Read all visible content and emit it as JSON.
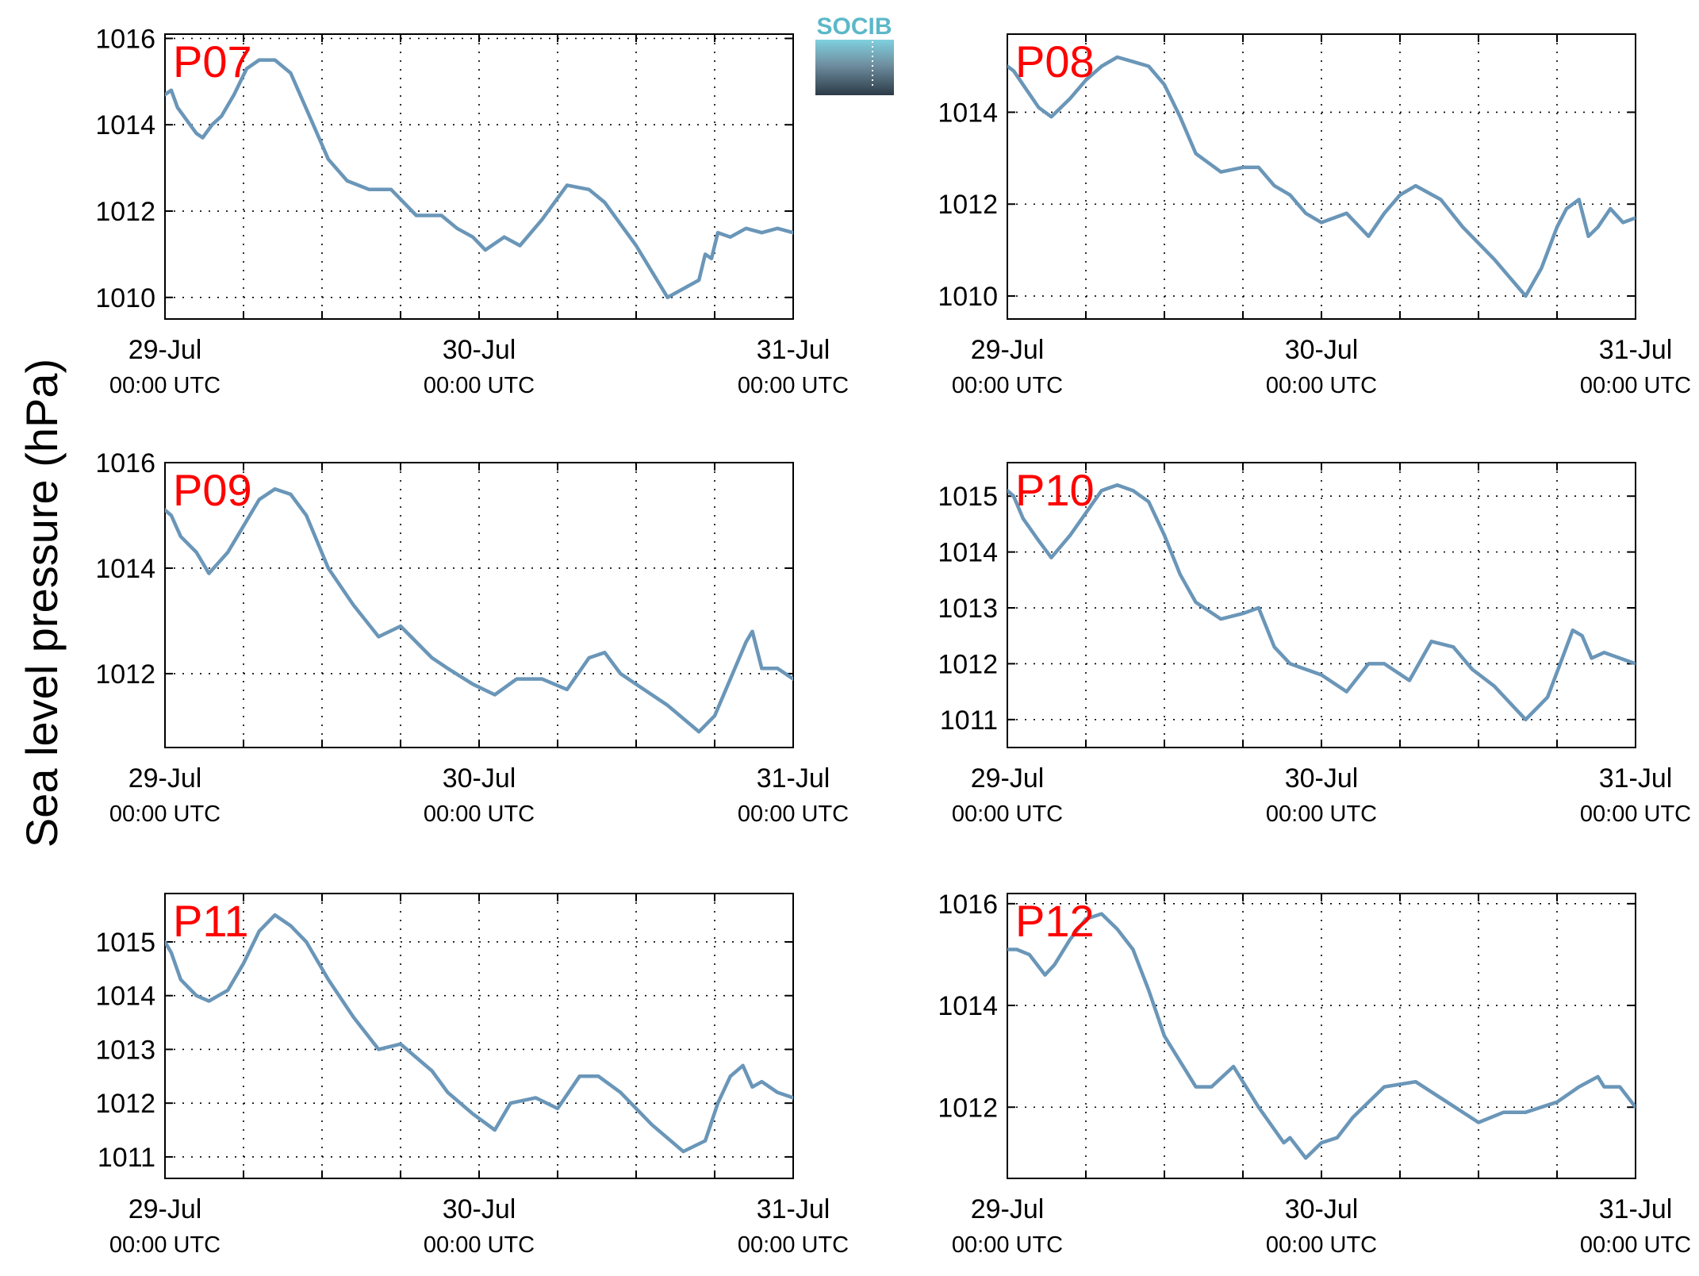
{
  "chart_data": {
    "type": "line",
    "ylabel": "Sea level pressure (hPa)",
    "logo": {
      "text": "SOCIB",
      "name": "socib-logo",
      "color": "#5bb8c8"
    },
    "colors": {
      "line": "#6a96b8",
      "label": "#ff0000",
      "grid": "#000000"
    },
    "grid": true,
    "x_ticks_days": [
      0,
      1,
      2
    ],
    "x_tick_labels": [
      {
        "date": "29-Jul",
        "time": "00:00 UTC"
      },
      {
        "date": "30-Jul",
        "time": "00:00 UTC"
      },
      {
        "date": "31-Jul",
        "time": "00:00 UTC"
      }
    ],
    "xlim_days": [
      0,
      2
    ],
    "panels": [
      {
        "label": "P07",
        "ylim": [
          1009.5,
          1016.1
        ],
        "yticks": [
          1010,
          1012,
          1014,
          1016
        ],
        "x": [
          0,
          0.02,
          0.04,
          0.07,
          0.1,
          0.12,
          0.15,
          0.18,
          0.22,
          0.26,
          0.3,
          0.35,
          0.4,
          0.46,
          0.52,
          0.58,
          0.65,
          0.72,
          0.8,
          0.88,
          0.93,
          0.98,
          1.02,
          1.08,
          1.13,
          1.2,
          1.28,
          1.35,
          1.4,
          1.45,
          1.5,
          1.6,
          1.7,
          1.72,
          1.74,
          1.76,
          1.8,
          1.85,
          1.9,
          1.95,
          2.0
        ],
        "y": [
          1014.7,
          1014.8,
          1014.4,
          1014.1,
          1013.8,
          1013.7,
          1014.0,
          1014.2,
          1014.7,
          1015.3,
          1015.5,
          1015.5,
          1015.2,
          1014.2,
          1013.2,
          1012.7,
          1012.5,
          1012.5,
          1011.9,
          1011.9,
          1011.6,
          1011.4,
          1011.1,
          1011.4,
          1011.2,
          1011.8,
          1012.6,
          1012.5,
          1012.2,
          1011.7,
          1011.2,
          1010.0,
          1010.4,
          1011.0,
          1010.9,
          1011.5,
          1011.4,
          1011.6,
          1011.5,
          1011.6,
          1011.5
        ]
      },
      {
        "label": "P08",
        "ylim": [
          1009.5,
          1015.7
        ],
        "yticks": [
          1010,
          1012,
          1014
        ],
        "x": [
          0,
          0.02,
          0.05,
          0.1,
          0.14,
          0.2,
          0.25,
          0.3,
          0.35,
          0.4,
          0.45,
          0.5,
          0.55,
          0.6,
          0.68,
          0.75,
          0.8,
          0.85,
          0.9,
          0.95,
          1.0,
          1.08,
          1.15,
          1.2,
          1.25,
          1.3,
          1.38,
          1.45,
          1.55,
          1.65,
          1.7,
          1.75,
          1.78,
          1.82,
          1.85,
          1.88,
          1.92,
          1.96,
          2.0
        ],
        "y": [
          1015.0,
          1014.9,
          1014.6,
          1014.1,
          1013.9,
          1014.3,
          1014.7,
          1015.0,
          1015.2,
          1015.1,
          1015.0,
          1014.6,
          1013.9,
          1013.1,
          1012.7,
          1012.8,
          1012.8,
          1012.4,
          1012.2,
          1011.8,
          1011.6,
          1011.8,
          1011.3,
          1011.8,
          1012.2,
          1012.4,
          1012.1,
          1011.5,
          1010.8,
          1010.0,
          1010.6,
          1011.5,
          1011.9,
          1012.1,
          1011.3,
          1011.5,
          1011.9,
          1011.6,
          1011.7
        ]
      },
      {
        "label": "P09",
        "ylim": [
          1010.6,
          1016.0
        ],
        "yticks": [
          1012,
          1014,
          1016
        ],
        "x": [
          0,
          0.02,
          0.05,
          0.1,
          0.14,
          0.2,
          0.25,
          0.3,
          0.35,
          0.4,
          0.45,
          0.52,
          0.6,
          0.68,
          0.75,
          0.85,
          0.9,
          0.98,
          1.05,
          1.12,
          1.2,
          1.28,
          1.35,
          1.4,
          1.45,
          1.5,
          1.6,
          1.7,
          1.75,
          1.8,
          1.85,
          1.87,
          1.9,
          1.95,
          2.0
        ],
        "y": [
          1015.1,
          1015.0,
          1014.6,
          1014.3,
          1013.9,
          1014.3,
          1014.8,
          1015.3,
          1015.5,
          1015.4,
          1015.0,
          1014.0,
          1013.3,
          1012.7,
          1012.9,
          1012.3,
          1012.1,
          1011.8,
          1011.6,
          1011.9,
          1011.9,
          1011.7,
          1012.3,
          1012.4,
          1012.0,
          1011.8,
          1011.4,
          1010.9,
          1011.2,
          1011.9,
          1012.6,
          1012.8,
          1012.1,
          1012.1,
          1011.9
        ]
      },
      {
        "label": "P10",
        "ylim": [
          1010.5,
          1015.6
        ],
        "yticks": [
          1011,
          1012,
          1013,
          1014,
          1015
        ],
        "x": [
          0,
          0.02,
          0.05,
          0.1,
          0.14,
          0.2,
          0.25,
          0.3,
          0.35,
          0.4,
          0.45,
          0.5,
          0.55,
          0.6,
          0.68,
          0.75,
          0.8,
          0.85,
          0.9,
          0.95,
          1.0,
          1.08,
          1.15,
          1.2,
          1.28,
          1.35,
          1.42,
          1.48,
          1.55,
          1.65,
          1.72,
          1.76,
          1.8,
          1.83,
          1.86,
          1.9,
          1.95,
          2.0
        ],
        "y": [
          1015.1,
          1015.0,
          1014.6,
          1014.2,
          1013.9,
          1014.3,
          1014.7,
          1015.1,
          1015.2,
          1015.1,
          1014.9,
          1014.3,
          1013.6,
          1013.1,
          1012.8,
          1012.9,
          1013.0,
          1012.3,
          1012.0,
          1011.9,
          1011.8,
          1011.5,
          1012.0,
          1012.0,
          1011.7,
          1012.4,
          1012.3,
          1011.9,
          1011.6,
          1011.0,
          1011.4,
          1012.0,
          1012.6,
          1012.5,
          1012.1,
          1012.2,
          1012.1,
          1012.0
        ]
      },
      {
        "label": "P11",
        "ylim": [
          1010.6,
          1015.9
        ],
        "yticks": [
          1011,
          1012,
          1013,
          1014,
          1015
        ],
        "x": [
          0,
          0.02,
          0.05,
          0.1,
          0.14,
          0.2,
          0.25,
          0.3,
          0.35,
          0.4,
          0.45,
          0.52,
          0.6,
          0.68,
          0.75,
          0.85,
          0.9,
          0.98,
          1.05,
          1.1,
          1.18,
          1.25,
          1.32,
          1.38,
          1.45,
          1.55,
          1.65,
          1.72,
          1.76,
          1.8,
          1.84,
          1.87,
          1.9,
          1.95,
          2.0
        ],
        "y": [
          1015.0,
          1014.8,
          1014.3,
          1014.0,
          1013.9,
          1014.1,
          1014.6,
          1015.2,
          1015.5,
          1015.3,
          1015.0,
          1014.3,
          1013.6,
          1013.0,
          1013.1,
          1012.6,
          1012.2,
          1011.8,
          1011.5,
          1012.0,
          1012.1,
          1011.9,
          1012.5,
          1012.5,
          1012.2,
          1011.6,
          1011.1,
          1011.3,
          1012.0,
          1012.5,
          1012.7,
          1012.3,
          1012.4,
          1012.2,
          1012.1
        ]
      },
      {
        "label": "P12",
        "ylim": [
          1010.6,
          1016.2
        ],
        "yticks": [
          1012,
          1014,
          1016
        ],
        "x": [
          0,
          0.03,
          0.07,
          0.12,
          0.15,
          0.2,
          0.25,
          0.3,
          0.35,
          0.4,
          0.45,
          0.5,
          0.55,
          0.6,
          0.65,
          0.72,
          0.8,
          0.88,
          0.9,
          0.95,
          1.0,
          1.05,
          1.1,
          1.15,
          1.2,
          1.3,
          1.4,
          1.5,
          1.58,
          1.65,
          1.75,
          1.82,
          1.88,
          1.9,
          1.95,
          2.0
        ],
        "y": [
          1015.1,
          1015.1,
          1015.0,
          1014.6,
          1014.8,
          1015.3,
          1015.7,
          1015.8,
          1015.5,
          1015.1,
          1014.3,
          1013.4,
          1012.9,
          1012.4,
          1012.4,
          1012.8,
          1012.0,
          1011.3,
          1011.4,
          1011.0,
          1011.3,
          1011.4,
          1011.8,
          1012.1,
          1012.4,
          1012.5,
          1012.1,
          1011.7,
          1011.9,
          1011.9,
          1012.1,
          1012.4,
          1012.6,
          1012.4,
          1012.4,
          1012.0
        ]
      }
    ]
  }
}
